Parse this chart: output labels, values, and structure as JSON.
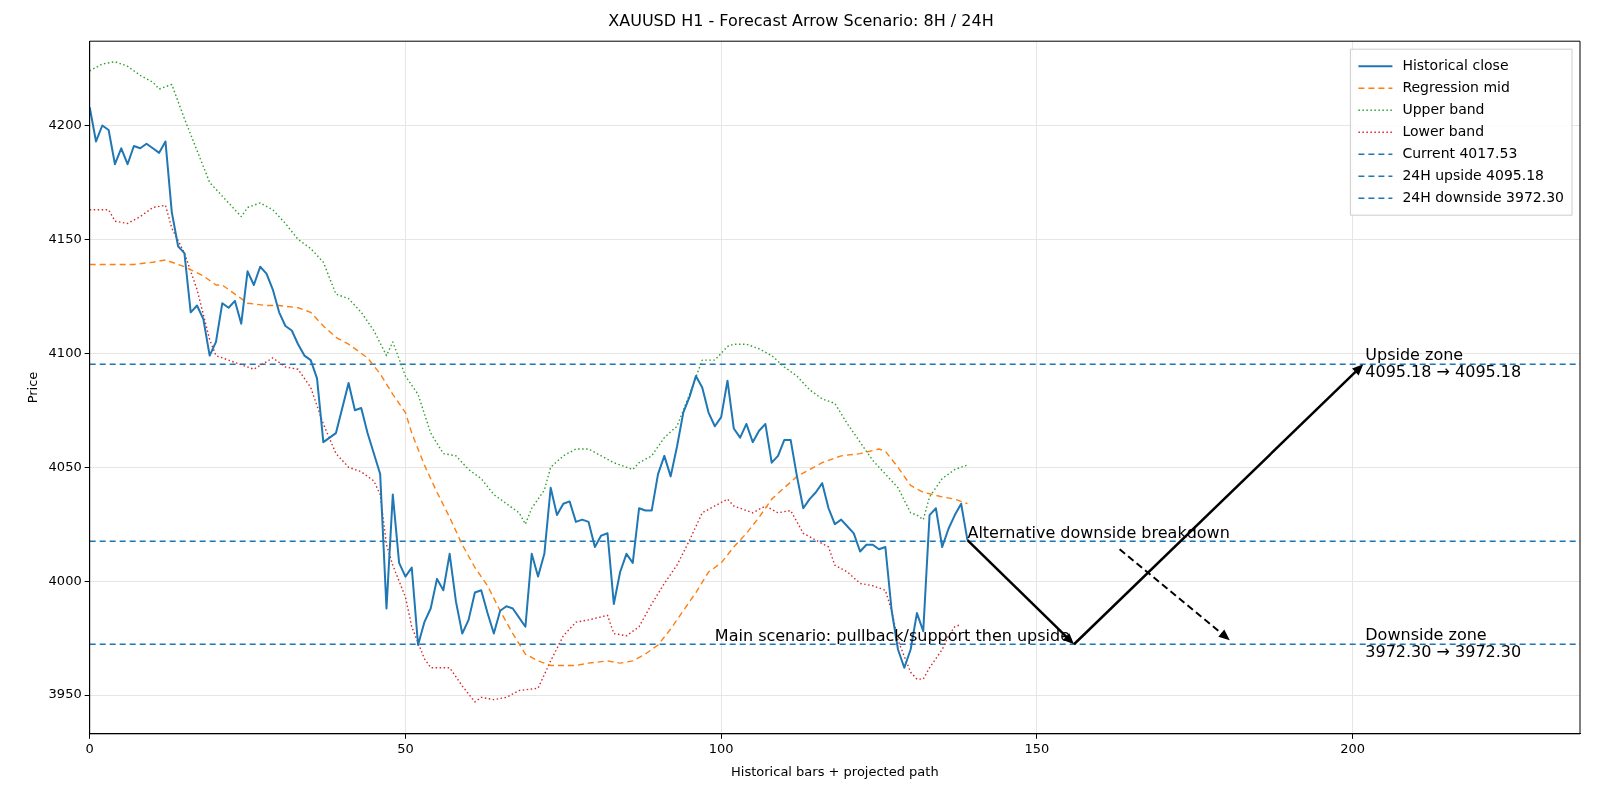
{
  "chart_data": {
    "type": "line",
    "title": "XAUUSD H1 - Forecast Arrow Scenario: 8H / 24H",
    "xlabel": "Historical bars + projected path",
    "ylabel": "Price",
    "xlim": [
      0,
      236
    ],
    "xticks": [
      0,
      50,
      100,
      150,
      200
    ],
    "ylim": [
      3933,
      4237
    ],
    "yticks": [
      3950,
      4000,
      4050,
      4100,
      4150,
      4200
    ],
    "grid": true,
    "legend": "top right",
    "marker": "none",
    "series": [
      {
        "name": "Historical close",
        "color": "#1f77b4",
        "line_style": "solid",
        "x": [
          0,
          1,
          2,
          3,
          4,
          5,
          6,
          7,
          8,
          9,
          10,
          11,
          12,
          13,
          14,
          15,
          16,
          17,
          18,
          19,
          20,
          21,
          22,
          23,
          24,
          25,
          26,
          27,
          28,
          29,
          30,
          31,
          32,
          33,
          34,
          35,
          36,
          37,
          39,
          41,
          42,
          43,
          44,
          46,
          47,
          48,
          49,
          50,
          51,
          52,
          53,
          54,
          55,
          56,
          57,
          58,
          59,
          60,
          61,
          62,
          63,
          64,
          65,
          66,
          67,
          68,
          69,
          70,
          71,
          72,
          73,
          74,
          75,
          76,
          77,
          78,
          79,
          80,
          81,
          82,
          83,
          84,
          85,
          86,
          87,
          88,
          89,
          90,
          91,
          92,
          93,
          94,
          95,
          96,
          97,
          98,
          99,
          100,
          101,
          102,
          103,
          104,
          105,
          106,
          107,
          108,
          109,
          110,
          111,
          112,
          113,
          114,
          115,
          116,
          117,
          118,
          119,
          120,
          121,
          122,
          123,
          124,
          125,
          126,
          127,
          128,
          129,
          130,
          131,
          132,
          133,
          134,
          135,
          136,
          137,
          138,
          139
        ],
        "values": [
          4208,
          4193,
          4200,
          4198,
          4183,
          4190,
          4183,
          4191,
          4190,
          4192,
          4190,
          4188,
          4193,
          4162,
          4147,
          4144,
          4118,
          4121,
          4115,
          4099,
          4105,
          4122,
          4120,
          4123,
          4113,
          4136,
          4130,
          4138,
          4135,
          4128,
          4118,
          4112,
          4110,
          4104,
          4099,
          4097,
          4089,
          4061,
          4065,
          4087,
          4075,
          4076,
          4065,
          4047,
          3988,
          4038,
          4008,
          4002,
          4006,
          3972,
          3982,
          3988,
          4001,
          3996,
          4012,
          3991,
          3977,
          3983,
          3995,
          3996,
          3986,
          3977,
          3987,
          3989,
          3988,
          3984,
          3980,
          4012,
          4002,
          4012,
          4041,
          4029,
          4034,
          4035,
          4026,
          4027,
          4026,
          4015,
          4020,
          4021,
          3990,
          4004,
          4012,
          4008,
          4032,
          4031,
          4031,
          4047,
          4055,
          4046,
          4059,
          4074,
          4081,
          4090,
          4085,
          4074,
          4068,
          4072,
          4088,
          4067,
          4063,
          4069,
          4061,
          4066,
          4069,
          4052,
          4055,
          4062,
          4062,
          4046,
          4032,
          4036,
          4039,
          4043,
          4032,
          4025,
          4027,
          4024,
          4021,
          4013,
          4016,
          4016,
          4014,
          4015,
          3987,
          3970,
          3962,
          3970,
          3986,
          3978,
          4029,
          4032,
          4015,
          4023,
          4029,
          4034,
          4018
        ]
      },
      {
        "name": "Regression mid",
        "color": "#ff7f0e",
        "line_style": "dashed",
        "x": [
          0,
          4,
          7,
          10,
          12,
          15,
          18,
          20,
          21,
          23,
          25,
          28,
          30,
          33,
          35,
          37,
          39,
          41,
          44,
          46,
          48,
          50,
          51,
          53,
          55,
          57,
          59,
          61,
          63,
          65,
          67,
          69,
          71,
          73,
          75,
          77,
          79,
          82,
          84,
          86,
          88,
          90,
          92,
          94,
          96,
          98,
          100,
          102,
          104,
          106,
          108,
          110,
          112,
          116,
          119,
          122,
          125,
          126,
          128,
          130,
          132,
          135,
          137,
          139
        ],
        "values": [
          4139,
          4139,
          4139,
          4140,
          4141,
          4138,
          4134,
          4130,
          4130,
          4126,
          4122,
          4121,
          4121,
          4120,
          4118,
          4112,
          4107,
          4104,
          4098,
          4091,
          4082,
          4074,
          4065,
          4051,
          4039,
          4028,
          4016,
          4006,
          3998,
          3987,
          3977,
          3968,
          3965,
          3963,
          3963,
          3963,
          3964,
          3965,
          3964,
          3965,
          3968,
          3972,
          3979,
          3987,
          3995,
          4004,
          4008,
          4015,
          4021,
          4028,
          4036,
          4041,
          4046,
          4052,
          4055,
          4056,
          4058,
          4057,
          4050,
          4042,
          4039,
          4037,
          4036,
          4034
        ]
      },
      {
        "name": "Upper band",
        "color": "#2ca02c",
        "line_style": "dotted",
        "x": [
          0,
          2,
          4,
          6,
          8,
          10,
          11,
          13,
          15,
          17,
          19,
          21,
          23,
          24,
          25,
          27,
          29,
          31,
          33,
          35,
          37,
          39,
          41,
          43,
          45,
          47,
          48,
          50,
          52,
          54,
          56,
          58,
          60,
          62,
          64,
          66,
          68,
          69,
          70,
          72,
          73,
          75,
          77,
          79,
          81,
          83,
          85,
          86,
          87,
          89,
          91,
          93,
          95,
          97,
          99,
          101,
          102,
          104,
          106,
          108,
          110,
          112,
          114,
          116,
          118,
          120,
          122,
          124,
          126,
          128,
          130,
          131,
          132,
          133,
          135,
          137,
          139
        ],
        "values": [
          4224,
          4227,
          4228,
          4226,
          4222,
          4219,
          4216,
          4218,
          4203,
          4189,
          4175,
          4169,
          4163,
          4160,
          4164,
          4166,
          4163,
          4157,
          4150,
          4146,
          4140,
          4126,
          4124,
          4118,
          4110,
          4099,
          4105,
          4090,
          4082,
          4065,
          4056,
          4055,
          4049,
          4045,
          4038,
          4034,
          4030,
          4025,
          4032,
          4040,
          4050,
          4055,
          4058,
          4058,
          4055,
          4052,
          4050,
          4049,
          4052,
          4055,
          4063,
          4068,
          4082,
          4097,
          4097,
          4103,
          4104,
          4104,
          4102,
          4099,
          4094,
          4090,
          4084,
          4080,
          4078,
          4069,
          4061,
          4053,
          4047,
          4041,
          4030,
          4029,
          4027,
          4037,
          4045,
          4049,
          4051
        ]
      },
      {
        "name": "Lower band",
        "color": "#d62728",
        "line_style": "dotted",
        "x": [
          0,
          3,
          4,
          6,
          8,
          10,
          12,
          13,
          15,
          17,
          19,
          20,
          22,
          24,
          26,
          29,
          31,
          33,
          35,
          37,
          39,
          41,
          43,
          45,
          46,
          47,
          48,
          50,
          51,
          53,
          54,
          57,
          59,
          61,
          62,
          64,
          66,
          68,
          71,
          73,
          75,
          77,
          79,
          82,
          83,
          85,
          87,
          89,
          91,
          93,
          95,
          97,
          99,
          101,
          102,
          105,
          107,
          109,
          111,
          113,
          115,
          117,
          118,
          120,
          122,
          124,
          126,
          127,
          128,
          129,
          130,
          131,
          132,
          133,
          134,
          135,
          136,
          137,
          138
        ],
        "values": [
          4163,
          4163,
          4158,
          4157,
          4160,
          4164,
          4165,
          4155,
          4144,
          4128,
          4106,
          4099,
          4097,
          4095,
          4093,
          4098,
          4094,
          4093,
          4085,
          4069,
          4056,
          4050,
          4048,
          4044,
          4038,
          4016,
          4007,
          3993,
          3980,
          3966,
          3962,
          3962,
          3954,
          3947,
          3949,
          3948,
          3949,
          3952,
          3953,
          3965,
          3976,
          3982,
          3983,
          3985,
          3977,
          3976,
          3980,
          3990,
          3999,
          4007,
          4018,
          4030,
          4033,
          4036,
          4033,
          4030,
          4033,
          4030,
          4031,
          4021,
          4018,
          4015,
          4007,
          4004,
          3999,
          3998,
          3996,
          3987,
          3974,
          3967,
          3960,
          3957,
          3957,
          3962,
          3966,
          3970,
          3976,
          3980,
          3981
        ]
      }
    ],
    "ref_lines": [
      {
        "axis": "y",
        "value": 4017.53,
        "label": "Current 4017.53",
        "color": "#1f77b4",
        "line_style": "dashed"
      },
      {
        "axis": "y",
        "value": 4095.18,
        "label": "24H upside 4095.18",
        "color": "#1f77b4",
        "line_style": "dashed"
      },
      {
        "axis": "y",
        "value": 3972.3,
        "label": "24H downside 3972.30",
        "color": "#1f77b4",
        "line_style": "dashed"
      }
    ],
    "annotations": [
      {
        "text": "Main scenario: pullback/support then upside",
        "x": 99,
        "y": 3972.3
      },
      {
        "text": "Alternative downside breakdown",
        "x": 139,
        "y": 4017.53
      },
      {
        "text": "Upside zone\n4095.18 → 4095.18",
        "x": 202,
        "y": 4095.18
      },
      {
        "text": "Downside zone\n3972.30 → 3972.30",
        "x": 202,
        "y": 3972.3
      }
    ]
  }
}
